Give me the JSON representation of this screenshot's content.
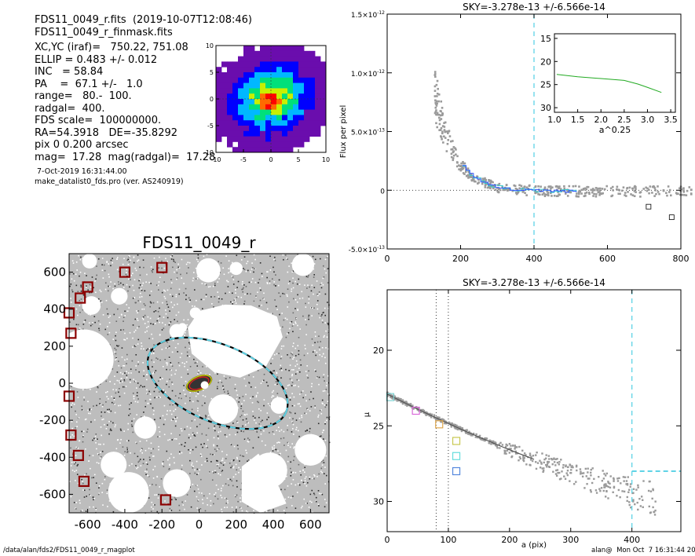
{
  "header": {
    "lines": [
      "FDS11_0049_r.fits  (2019-10-07T12:08:46)",
      "FDS11_0049_r_finmask.fits",
      "XC,YC (iraf)=   750.22, 751.08",
      "ELLIP = 0.483 +/- 0.012",
      "INC   = 58.84",
      "PA    =  67.1 +/-   1.0",
      "range=   80.-  100.",
      "radgal=  400.",
      "FDS scale=  100000000.",
      "RA=54.3918   DE=-35.8292",
      "pix 0 0.200 arcsec",
      "mag=  17.28  mag(radgal)=  17.28"
    ],
    "date_line": "7-Oct-2019 16:31:44.00",
    "program_line": "make_datalist0_fds.pro (ver. AS240919)"
  },
  "footer": {
    "path": "/data/alan/fds2/FDS11_0049_r_magplot",
    "user": "alan@  Mon Oct  7 16:31:44 2019"
  },
  "colors": {
    "dash": "#5fd3e6",
    "mask_box": "#8b0000",
    "points": "#9a9a9a",
    "inset_line": "#22aa22",
    "profile_blue": "#3355ff",
    "profile_cyan": "#33cccc"
  },
  "chart_data": [
    {
      "type": "heatmap",
      "name": "contour-thumbnail",
      "xlim": [
        -10,
        10
      ],
      "ylim": [
        -10,
        10
      ],
      "xticks": [
        "-10",
        "-5",
        "0",
        "5",
        "10"
      ],
      "yticks": [
        "-10",
        "-5",
        "0",
        "5",
        "10"
      ],
      "levels_colors": [
        "#ffffff",
        "#6a0dad",
        "#0000ff",
        "#00b8ff",
        "#00e07a",
        "#c8f000",
        "#ff6a00",
        "#ff0000"
      ]
    },
    {
      "type": "scatter",
      "name": "sky-image",
      "title": "FDS11_0049_r",
      "xlim": [
        -700,
        700
      ],
      "ylim": [
        -700,
        700
      ],
      "xticks": [
        "-600",
        "-400",
        "-200",
        "0",
        "200",
        "400",
        "600"
      ],
      "yticks": [
        "-600",
        "-400",
        "-200",
        "0",
        "200",
        "400",
        "600"
      ],
      "mask_boxes": [
        [
          -400,
          600
        ],
        [
          -200,
          625
        ],
        [
          -600,
          520
        ],
        [
          -640,
          460
        ],
        [
          -700,
          380
        ],
        [
          -690,
          270
        ],
        [
          -700,
          -70
        ],
        [
          -690,
          -280
        ],
        [
          -650,
          -390
        ],
        [
          -620,
          -530
        ],
        [
          -180,
          -630
        ]
      ],
      "ellipse": {
        "x": 100,
        "y": 0,
        "a": 400,
        "b": 207,
        "pa": 22.9
      }
    },
    {
      "type": "scatter",
      "name": "sky-profile",
      "title": "SKY=-3.278e-13 +/-6.566e-14",
      "ylabel": "Flux per pixel",
      "xlim": [
        0,
        800
      ],
      "ylim": [
        -5e-13,
        1.5e-12
      ],
      "xticks": [
        "0",
        "200",
        "400",
        "600",
        "800"
      ],
      "yticks": [
        {
          "v": 1.5e-12,
          "m": "1.5",
          "e": "-12"
        },
        {
          "v": 1e-12,
          "m": "1.0",
          "e": "-12"
        },
        {
          "v": 5e-13,
          "m": "5.0",
          "e": "-13"
        },
        {
          "v": 0,
          "m": "0",
          "e": ""
        },
        {
          "v": -5e-13,
          "m": "-5.0",
          "e": "-13"
        }
      ],
      "vline_x": 400,
      "squares": [
        [
          712,
          -1.4e-13
        ],
        [
          775,
          -2.3e-13
        ]
      ],
      "inset": {
        "xlabel": "a^0.25",
        "xlim": [
          1.0,
          3.6
        ],
        "ylim": [
          31,
          14
        ],
        "xticks": [
          "1.0",
          "1.5",
          "2.0",
          "2.5",
          "3.0",
          "3.5"
        ],
        "yticks": [
          "15",
          "20",
          "25",
          "30"
        ],
        "line_x": [
          1.05,
          1.5,
          2.0,
          2.5,
          2.8,
          3.0,
          3.3
        ],
        "line_y": [
          22.8,
          23.3,
          23.7,
          24.1,
          24.9,
          25.6,
          26.7
        ]
      }
    },
    {
      "type": "scatter",
      "name": "surface-brightness",
      "title": "SKY=-3.278e-13 +/-6.566e-14",
      "xlabel": "a (pix)",
      "ylabel": "μ",
      "xlim": [
        0,
        480
      ],
      "ylim": [
        32,
        16
      ],
      "xticks": [
        "0",
        "100",
        "200",
        "300",
        "400"
      ],
      "yticks": [
        "20",
        "25",
        "30"
      ],
      "vlines": [
        80,
        100
      ],
      "cyan_vline": 400,
      "cyan_hline": {
        "x0": 400,
        "x1": 480,
        "y": 28.0
      },
      "markers": [
        {
          "x": 5,
          "y": 23.1,
          "c": "#7fd3d3"
        },
        {
          "x": 47,
          "y": 24.0,
          "c": "#d96ad9"
        },
        {
          "x": 85,
          "y": 24.9,
          "c": "#e0a84e"
        },
        {
          "x": 113,
          "y": 26.0,
          "c": "#c8c850"
        },
        {
          "x": 113,
          "y": 27.0,
          "c": "#66dddd"
        },
        {
          "x": 113,
          "y": 28.0,
          "c": "#5588dd"
        }
      ]
    }
  ]
}
